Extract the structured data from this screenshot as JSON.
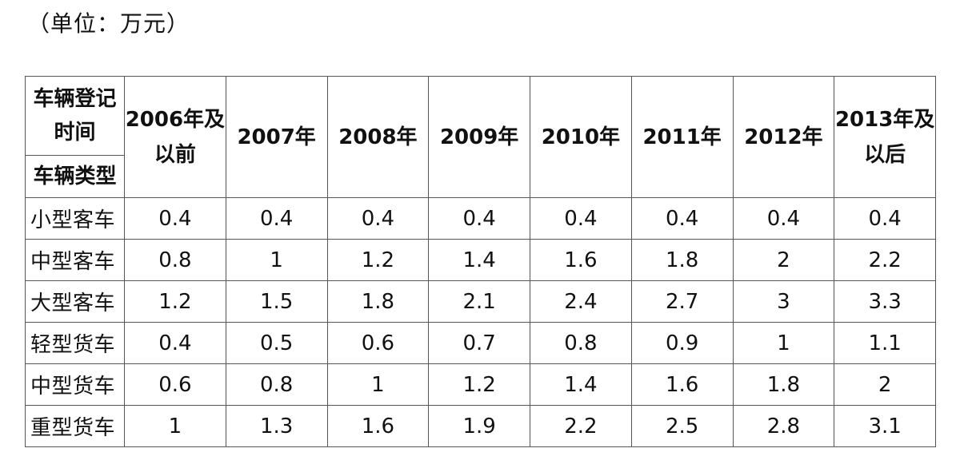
{
  "unit_note": "（单位：万元）",
  "table": {
    "corner_top": "车辆登记时间",
    "corner_bottom": "车辆类型",
    "years": [
      "2006年及以前",
      "2007年",
      "2008年",
      "2009年",
      "2010年",
      "2011年",
      "2012年",
      "2013年及以后"
    ],
    "rows": [
      {
        "type": "小型客车",
        "values": [
          "0.4",
          "0.4",
          "0.4",
          "0.4",
          "0.4",
          "0.4",
          "0.4",
          "0.4"
        ]
      },
      {
        "type": "中型客车",
        "values": [
          "0.8",
          "1",
          "1.2",
          "1.4",
          "1.6",
          "1.8",
          "2",
          "2.2"
        ]
      },
      {
        "type": "大型客车",
        "values": [
          "1.2",
          "1.5",
          "1.8",
          "2.1",
          "2.4",
          "2.7",
          "3",
          "3.3"
        ]
      },
      {
        "type": "轻型货车",
        "values": [
          "0.4",
          "0.5",
          "0.6",
          "0.7",
          "0.8",
          "0.9",
          "1",
          "1.1"
        ]
      },
      {
        "type": "中型货车",
        "values": [
          "0.6",
          "0.8",
          "1",
          "1.2",
          "1.4",
          "1.6",
          "1.8",
          "2"
        ]
      },
      {
        "type": "重型货车",
        "values": [
          "1",
          "1.3",
          "1.6",
          "1.9",
          "2.2",
          "2.5",
          "2.8",
          "3.1"
        ]
      }
    ]
  }
}
